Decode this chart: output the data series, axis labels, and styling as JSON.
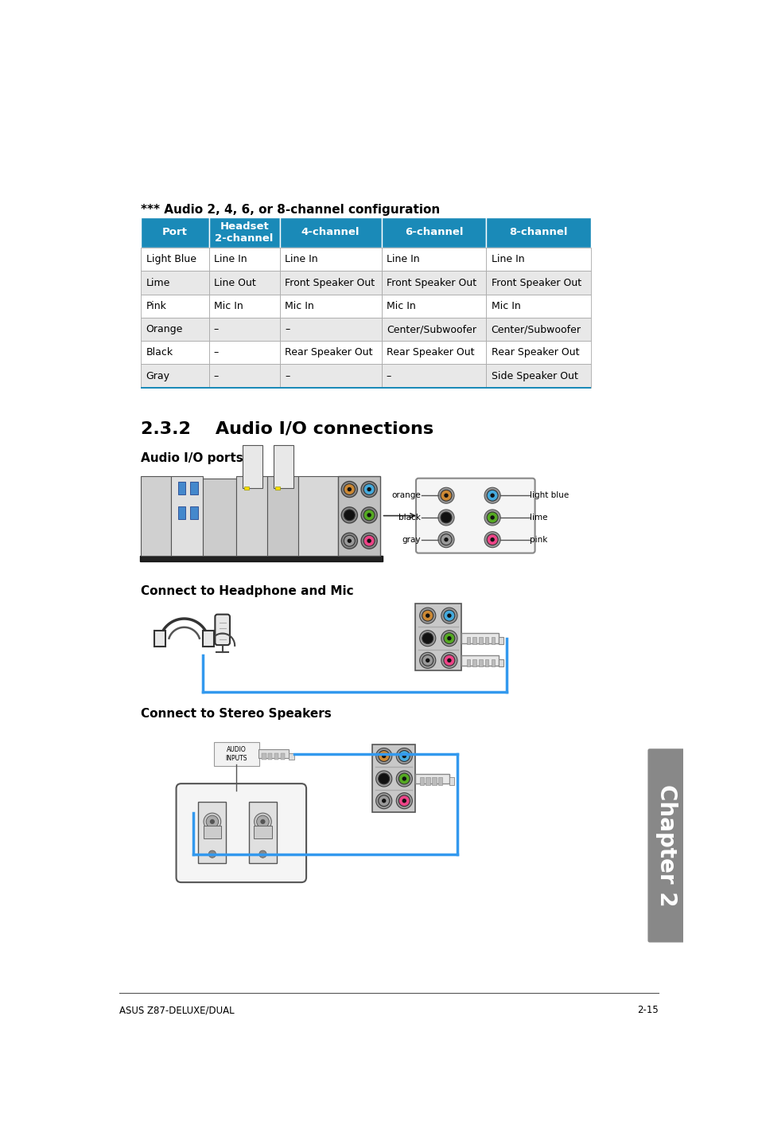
{
  "page_bg": "#ffffff",
  "table_title": "*** Audio 2, 4, 6, or 8-channel configuration",
  "table_title_fontsize": 11,
  "table_header": [
    "Port",
    "Headset\n2-channel",
    "4-channel",
    "6-channel",
    "8-channel"
  ],
  "table_header_bg": "#1a8ab8",
  "table_header_color": "#ffffff",
  "table_data": [
    [
      "Light Blue",
      "Line In",
      "Line In",
      "Line In",
      "Line In"
    ],
    [
      "Lime",
      "Line Out",
      "Front Speaker Out",
      "Front Speaker Out",
      "Front Speaker Out"
    ],
    [
      "Pink",
      "Mic In",
      "Mic In",
      "Mic In",
      "Mic In"
    ],
    [
      "Orange",
      "–",
      "–",
      "Center/Subwoofer",
      "Center/Subwoofer"
    ],
    [
      "Black",
      "–",
      "Rear Speaker Out",
      "Rear Speaker Out",
      "Rear Speaker Out"
    ],
    [
      "Gray",
      "–",
      "–",
      "–",
      "Side Speaker Out"
    ]
  ],
  "table_row_bg_alt": "#e8e8e8",
  "table_row_bg_main": "#ffffff",
  "table_border_color": "#aaaaaa",
  "section_title": "2.3.2    Audio I/O connections",
  "section_title_fontsize": 16,
  "subsection1": "Audio I/O ports",
  "subsection2": "Connect to Headphone and Mic",
  "subsection3": "Connect to Stereo Speakers",
  "subsection_fontsize": 11,
  "footer_left": "ASUS Z87-DELUXE/DUAL",
  "footer_right": "2-15",
  "chapter_label": "Chapter 2",
  "audio_ports_colors": {
    "orange": "#cc8833",
    "light_blue": "#44aadd",
    "black_port": "#111111",
    "lime": "#55aa22",
    "gray_port": "#999999",
    "pink": "#ee4488"
  }
}
